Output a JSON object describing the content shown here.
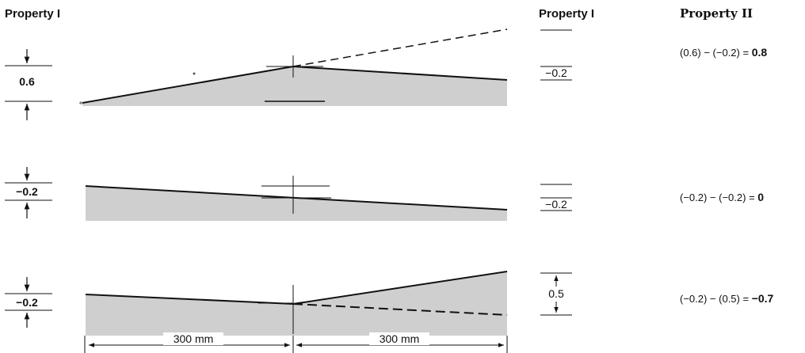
{
  "headers": {
    "left": "Property I",
    "middle": "Property I",
    "right": "Property II"
  },
  "rows": [
    {
      "left_value": "0.6",
      "middle_value": "−0.2",
      "equation_lhs": "(0.6) − (−0.2) = ",
      "equation_result": "0.8"
    },
    {
      "left_value": "−0.2",
      "middle_value": "−0.2",
      "equation_lhs": "(−0.2) − (−0.2) = ",
      "equation_result": "0"
    },
    {
      "left_value": "−0.2",
      "middle_value": "0.5",
      "equation_lhs": "(−0.2) − (0.5) = ",
      "equation_result": "−0.7"
    }
  ],
  "dimensions": {
    "left_span": "300 mm",
    "right_span": "300 mm"
  },
  "colors": {
    "fill": "#cfcfcf",
    "line": "#111111"
  }
}
